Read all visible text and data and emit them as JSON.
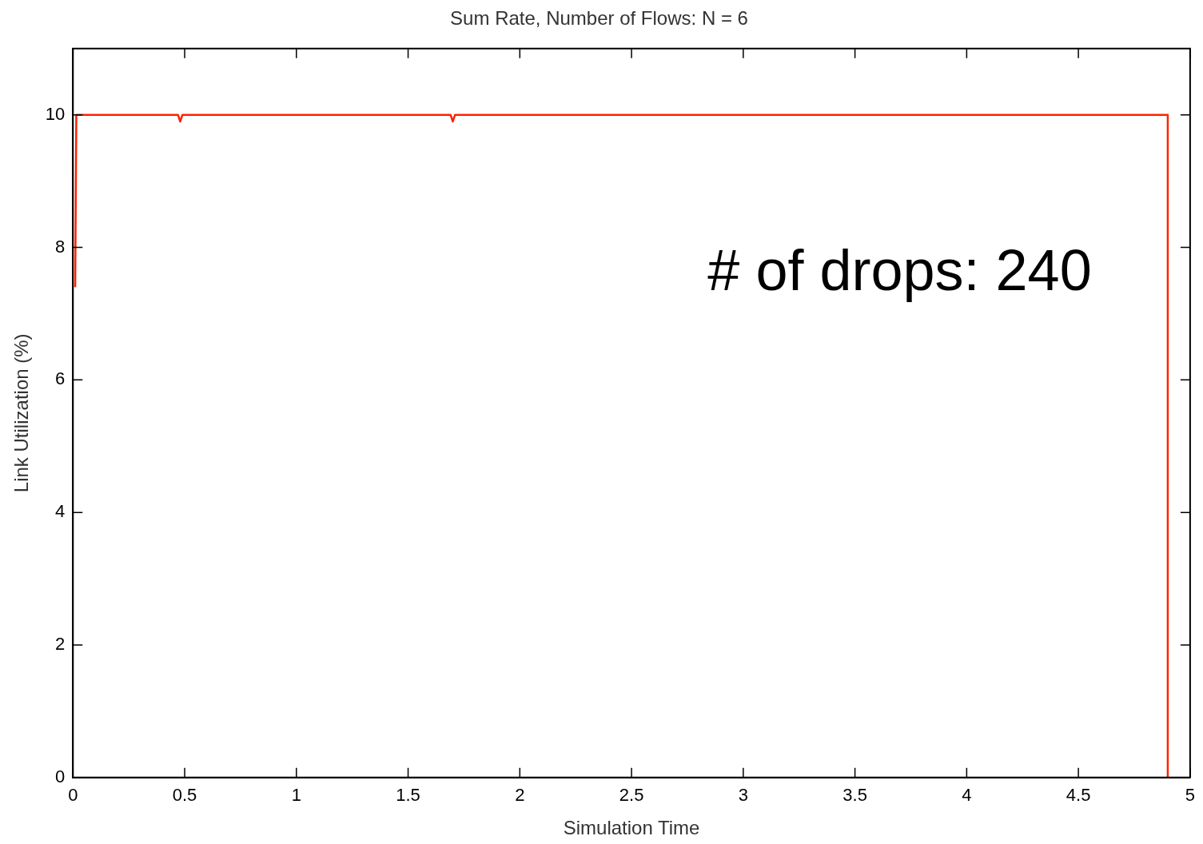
{
  "chart_data": {
    "type": "line",
    "title": "Sum Rate, Number of Flows: N = 6",
    "xlabel": "Simulation Time",
    "ylabel": "Link Utilization (%)",
    "x": [
      0.01,
      0.015,
      0.47,
      0.48,
      0.49,
      1.69,
      1.7,
      1.71,
      4.9,
      4.9
    ],
    "series": [
      {
        "color": "#ff2200",
        "values": [
          7.4,
          10,
          10,
          9.9,
          10,
          10,
          9.9,
          10,
          10,
          0
        ]
      }
    ],
    "xlim": [
      0,
      5
    ],
    "xticks": [
      0,
      0.5,
      1,
      1.5,
      2,
      2.5,
      3,
      3.5,
      4,
      4.5,
      5
    ],
    "ylim": [
      0,
      11
    ],
    "yticks": [
      0,
      2,
      4,
      6,
      8,
      10
    ],
    "grid": false,
    "legend": false,
    "marker": "none",
    "line_style": "solid",
    "annotations": [
      "# of drops: 240"
    ]
  }
}
